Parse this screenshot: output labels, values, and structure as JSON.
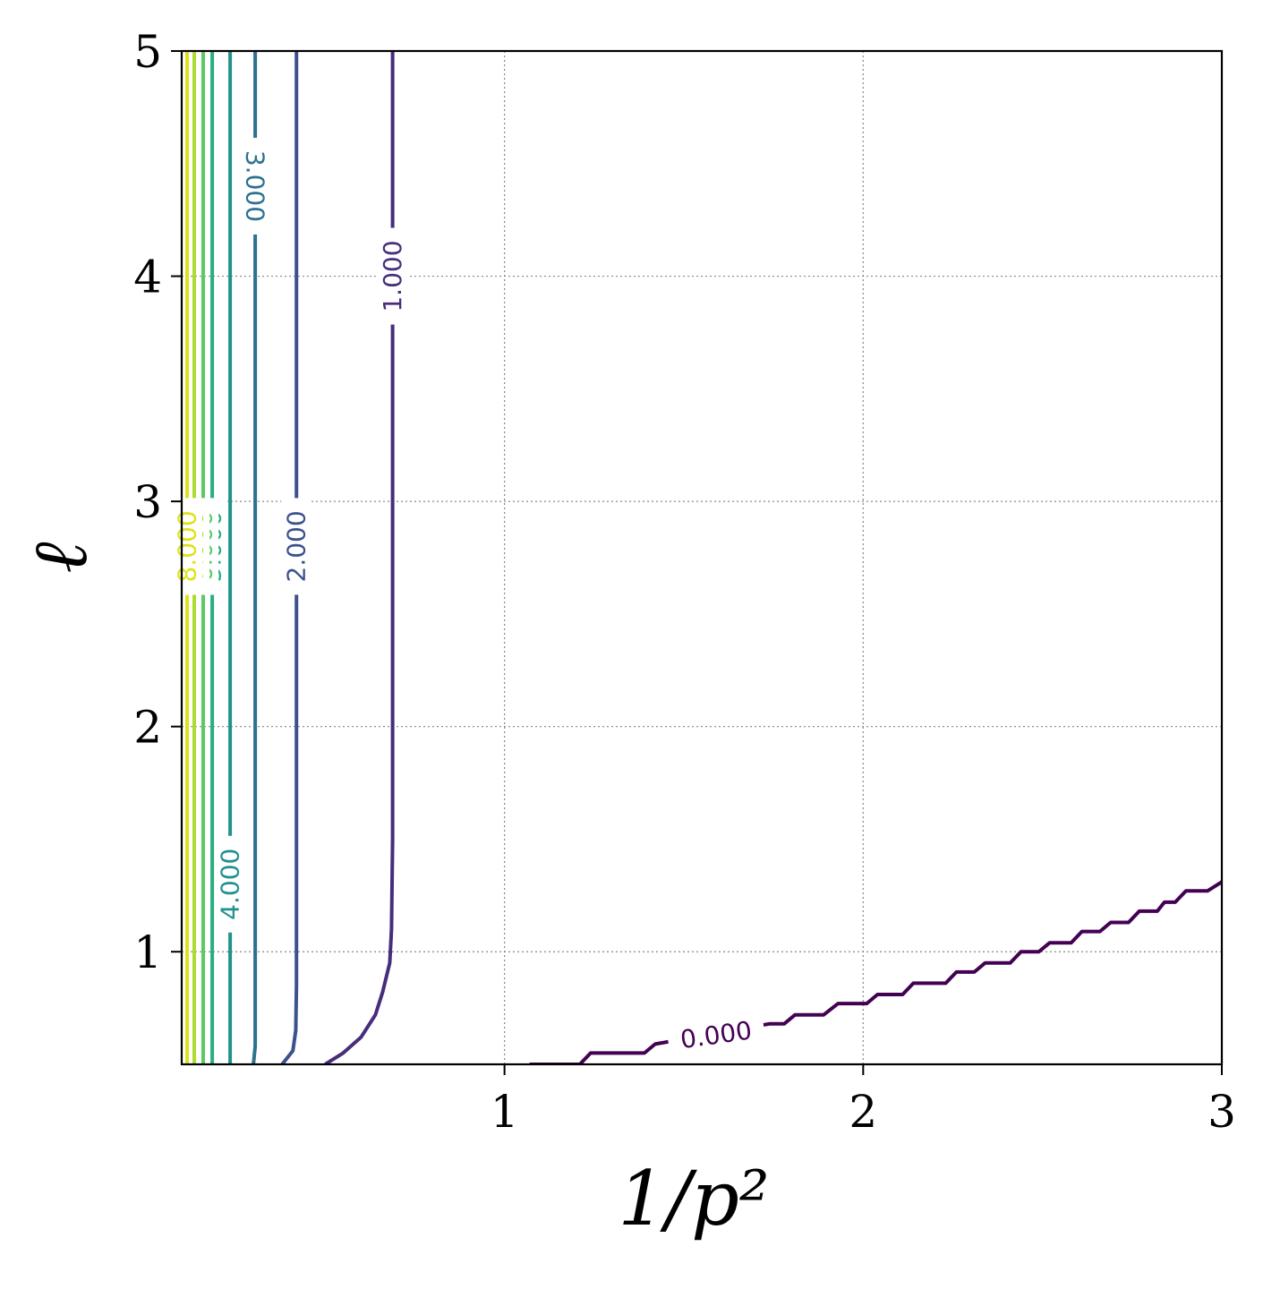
{
  "chart_data": {
    "type": "contour",
    "xlabel": "1/p²",
    "ylabel": "ℓ",
    "xlim": [
      0.1,
      3
    ],
    "ylim": [
      0.5,
      5
    ],
    "xticks": [
      "1",
      "2",
      "3"
    ],
    "yticks": [
      "1",
      "2",
      "3",
      "4",
      "5"
    ],
    "grid": "dotted",
    "colormap": "viridis",
    "contours": [
      {
        "level": 0.0,
        "label": "0.000",
        "color": "#440154",
        "points": [
          [
            1.07,
            0.5
          ],
          [
            1.21,
            0.5
          ],
          [
            1.24,
            0.55
          ],
          [
            1.39,
            0.55
          ],
          [
            1.42,
            0.59
          ],
          [
            1.74,
            0.68
          ],
          [
            1.78,
            0.68
          ],
          [
            1.81,
            0.72
          ],
          [
            1.89,
            0.72
          ],
          [
            1.93,
            0.77
          ],
          [
            2.01,
            0.77
          ],
          [
            2.04,
            0.81
          ],
          [
            2.11,
            0.81
          ],
          [
            2.14,
            0.86
          ],
          [
            2.23,
            0.86
          ],
          [
            2.26,
            0.91
          ],
          [
            2.31,
            0.91
          ],
          [
            2.34,
            0.95
          ],
          [
            2.41,
            0.95
          ],
          [
            2.44,
            1.0
          ],
          [
            2.49,
            1.0
          ],
          [
            2.52,
            1.04
          ],
          [
            2.58,
            1.04
          ],
          [
            2.61,
            1.09
          ],
          [
            2.66,
            1.09
          ],
          [
            2.69,
            1.13
          ],
          [
            2.74,
            1.13
          ],
          [
            2.77,
            1.18
          ],
          [
            2.82,
            1.18
          ],
          [
            2.84,
            1.22
          ],
          [
            2.87,
            1.22
          ],
          [
            2.9,
            1.27
          ],
          [
            2.96,
            1.27
          ],
          [
            3.0,
            1.31
          ]
        ],
        "label_pos": [
          1.59,
          0.63
        ]
      },
      {
        "level": 1.0,
        "label": "1.000",
        "color": "#472d7b",
        "points": [
          [
            0.5,
            0.5
          ],
          [
            0.55,
            0.55
          ],
          [
            0.6,
            0.62
          ],
          [
            0.64,
            0.72
          ],
          [
            0.66,
            0.82
          ],
          [
            0.68,
            0.95
          ],
          [
            0.685,
            1.1
          ],
          [
            0.688,
            1.5
          ],
          [
            0.688,
            5.0
          ]
        ],
        "label_pos": [
          0.688,
          4.0
        ]
      },
      {
        "level": 2.0,
        "label": "2.000",
        "color": "#3b528b",
        "points": [
          [
            0.38,
            0.5
          ],
          [
            0.41,
            0.56
          ],
          [
            0.418,
            0.65
          ],
          [
            0.42,
            0.85
          ],
          [
            0.42,
            5.0
          ]
        ],
        "label_pos": [
          0.42,
          2.8
        ]
      },
      {
        "level": 3.0,
        "label": "3.000",
        "color": "#2c728e",
        "points": [
          [
            0.3,
            0.5
          ],
          [
            0.305,
            0.58
          ],
          [
            0.305,
            5.0
          ]
        ],
        "label_pos": [
          0.305,
          4.4
        ]
      },
      {
        "level": 4.0,
        "label": "4.000",
        "color": "#21918c",
        "points": [
          [
            0.235,
            0.5
          ],
          [
            0.235,
            5.0
          ]
        ],
        "label_pos": [
          0.235,
          1.3
        ]
      },
      {
        "level": 5.0,
        "label": "5.000",
        "color": "#28ae80",
        "points": [
          [
            0.185,
            0.5
          ],
          [
            0.185,
            5.0
          ]
        ],
        "label_pos": [
          0.185,
          2.8
        ]
      },
      {
        "level": 6.0,
        "label": "6.000",
        "color": "#5ec962",
        "points": [
          [
            0.16,
            0.5
          ],
          [
            0.16,
            5.0
          ]
        ],
        "label_pos": [
          0.16,
          2.8
        ]
      },
      {
        "level": 7.0,
        "label": "7.000",
        "color": "#addc30",
        "points": [
          [
            0.135,
            0.5
          ],
          [
            0.135,
            5.0
          ]
        ],
        "label_pos": [
          0.135,
          2.8
        ]
      },
      {
        "level": 8.0,
        "label": "8.000",
        "color": "#dde318",
        "points": [
          [
            0.115,
            0.5
          ],
          [
            0.115,
            5.0
          ]
        ],
        "label_pos": [
          0.115,
          2.8
        ]
      }
    ]
  }
}
